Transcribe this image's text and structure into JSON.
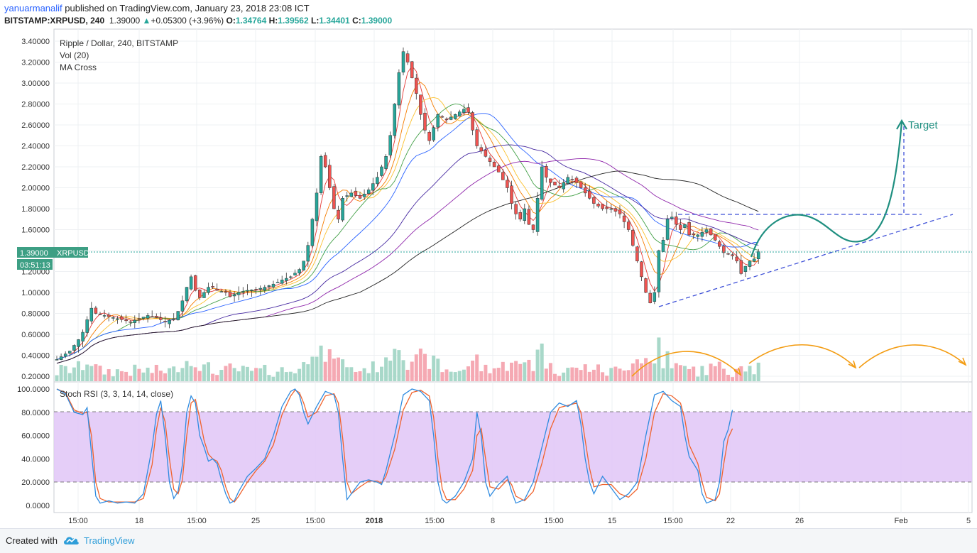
{
  "header": {
    "user": "yanuarmanalif",
    "published": " published on TradingView.com, January 23, 2018 23:08 ICT",
    "symbol": "BITSTAMP:XRPUSD, 240",
    "price": "1.39000",
    "arrow": "▲",
    "change": "+0.05300 (+3.96%)",
    "o_label": "O:",
    "o_value": "1.34764",
    "h_label": "H:",
    "h_value": "1.39562",
    "l_label": "L:",
    "l_value": "1.34401",
    "c_label": "C:",
    "c_value": "1.39000"
  },
  "legend": {
    "title": "Ripple / Dollar, 240, BITSTAMP",
    "vol": "Vol (20)",
    "ma": "MA Cross"
  },
  "price_badge": {
    "value": "1.39000",
    "symbol": "XRPUSD",
    "countdown": "03:51:13"
  },
  "annotation": {
    "target": "Target"
  },
  "rsi": {
    "label": "Stoch RSI (3, 3, 14, 14, close)"
  },
  "footer": {
    "created": "Created with",
    "brand": "TradingView"
  },
  "colors": {
    "bull": "#26a69a",
    "bear": "#ef5350",
    "bull_vol": "#a8d8c9",
    "bear_vol": "#f5a9b3",
    "rsi_band": "#e0c6f7",
    "rsi_k": "#2f8be0",
    "rsi_d": "#f0632d",
    "trend": "#3f51d8",
    "arrow_green": "#1f8f80",
    "arrow_orange": "#f39c12"
  },
  "chart_data": [
    {
      "type": "candlestick",
      "title": "Ripple / Dollar, 240, BITSTAMP",
      "y_ticks": [
        "3.40000",
        "3.20000",
        "3.00000",
        "2.80000",
        "2.60000",
        "2.40000",
        "2.20000",
        "2.00000",
        "1.80000",
        "1.60000",
        "1.40000",
        "1.20000",
        "1.00000",
        "0.80000",
        "0.60000",
        "0.40000",
        "0.20000"
      ],
      "ylim": [
        0.2,
        3.4
      ],
      "x_ticks": [
        "15:00",
        "18",
        "15:00",
        "25",
        "15:00",
        "2018",
        "15:00",
        "8",
        "15:00",
        "15",
        "15:00",
        "22",
        "26",
        "Feb",
        "5"
      ],
      "price_path": [
        [
          0,
          0.36
        ],
        [
          3,
          0.44
        ],
        [
          5,
          0.55
        ],
        [
          6,
          0.62
        ],
        [
          7,
          0.74
        ],
        [
          8,
          0.85
        ],
        [
          9,
          0.8
        ],
        [
          11,
          0.78
        ],
        [
          13,
          0.76
        ],
        [
          15,
          0.74
        ],
        [
          17,
          0.72
        ],
        [
          19,
          0.75
        ],
        [
          21,
          0.78
        ],
        [
          23,
          0.76
        ],
        [
          25,
          0.72
        ],
        [
          27,
          0.75
        ],
        [
          28,
          0.82
        ],
        [
          29,
          0.92
        ],
        [
          30,
          1.05
        ],
        [
          31,
          1.15
        ],
        [
          32,
          1.02
        ],
        [
          33,
          0.95
        ],
        [
          35,
          1.05
        ],
        [
          36,
          1.05
        ],
        [
          37,
          1.02
        ],
        [
          39,
          1.0
        ],
        [
          40,
          0.96
        ],
        [
          42,
          1.0
        ],
        [
          44,
          1.02
        ],
        [
          46,
          1.03
        ],
        [
          48,
          1.05
        ],
        [
          50,
          1.08
        ],
        [
          52,
          1.12
        ],
        [
          54,
          1.15
        ],
        [
          56,
          1.22
        ],
        [
          57,
          1.3
        ],
        [
          58,
          1.45
        ],
        [
          59,
          1.7
        ],
        [
          60,
          1.95
        ],
        [
          61,
          2.3
        ],
        [
          62,
          2.2
        ],
        [
          63,
          2.0
        ],
        [
          64,
          1.8
        ],
        [
          65,
          1.7
        ],
        [
          66,
          1.9
        ],
        [
          68,
          1.95
        ],
        [
          70,
          1.9
        ],
        [
          72,
          1.98
        ],
        [
          74,
          2.1
        ],
        [
          75,
          2.2
        ],
        [
          76,
          2.3
        ],
        [
          77,
          2.5
        ],
        [
          78,
          2.8
        ],
        [
          79,
          3.1
        ],
        [
          80,
          3.3
        ],
        [
          81,
          3.2
        ],
        [
          82,
          3.05
        ],
        [
          83,
          2.9
        ],
        [
          84,
          2.7
        ],
        [
          85,
          2.55
        ],
        [
          86,
          2.45
        ],
        [
          88,
          2.7
        ],
        [
          90,
          2.65
        ],
        [
          92,
          2.7
        ],
        [
          94,
          2.75
        ],
        [
          95,
          2.72
        ],
        [
          96,
          2.55
        ],
        [
          97,
          2.4
        ],
        [
          98,
          2.35
        ],
        [
          100,
          2.25
        ],
        [
          102,
          2.15
        ],
        [
          104,
          2.0
        ],
        [
          105,
          1.85
        ],
        [
          106,
          1.75
        ],
        [
          107,
          1.7
        ],
        [
          108,
          1.8
        ],
        [
          109,
          1.65
        ],
        [
          110,
          1.6
        ],
        [
          112,
          2.2
        ],
        [
          113,
          2.1
        ],
        [
          114,
          2.05
        ],
        [
          116,
          2.0
        ],
        [
          118,
          2.1
        ],
        [
          120,
          2.05
        ],
        [
          122,
          1.95
        ],
        [
          124,
          1.85
        ],
        [
          126,
          1.8
        ],
        [
          128,
          1.8
        ],
        [
          130,
          1.75
        ],
        [
          132,
          1.6
        ],
        [
          133,
          1.45
        ],
        [
          134,
          1.3
        ],
        [
          135,
          1.15
        ],
        [
          136,
          1.0
        ],
        [
          137,
          0.9
        ],
        [
          138,
          1.0
        ],
        [
          139,
          1.4
        ],
        [
          140,
          1.5
        ],
        [
          141,
          1.7
        ],
        [
          142,
          1.72
        ],
        [
          143,
          1.65
        ],
        [
          144,
          1.6
        ],
        [
          145,
          1.65
        ],
        [
          146,
          1.55
        ],
        [
          148,
          1.55
        ],
        [
          150,
          1.6
        ],
        [
          152,
          1.5
        ],
        [
          154,
          1.38
        ],
        [
          156,
          1.35
        ],
        [
          157,
          1.3
        ],
        [
          158,
          1.18
        ],
        [
          159,
          1.25
        ],
        [
          160,
          1.3
        ],
        [
          161,
          1.32
        ],
        [
          162,
          1.39
        ]
      ],
      "volume_ticks_note": "volume histogram overlay",
      "projection": {
        "trend_lower": [
          [
            "Jan 16",
            0.87
          ],
          [
            "Feb 5",
            1.75
          ]
        ],
        "resistance": 1.74,
        "target": 2.65,
        "label": "Target"
      }
    },
    {
      "type": "line",
      "title": "Stoch RSI (3, 3, 14, 14, close)",
      "y_ticks": [
        "100.0000",
        "80.0000",
        "60.0000",
        "40.0000",
        "20.0000",
        "0.0000"
      ],
      "ylim": [
        0,
        100
      ],
      "band": [
        20,
        80
      ],
      "k_path": [
        [
          0,
          100
        ],
        [
          2,
          96
        ],
        [
          4,
          80
        ],
        [
          6,
          78
        ],
        [
          7,
          84
        ],
        [
          8,
          45
        ],
        [
          9,
          8
        ],
        [
          10,
          2
        ],
        [
          12,
          4
        ],
        [
          14,
          2
        ],
        [
          16,
          3
        ],
        [
          18,
          2
        ],
        [
          20,
          10
        ],
        [
          22,
          50
        ],
        [
          23,
          78
        ],
        [
          24,
          90
        ],
        [
          25,
          60
        ],
        [
          26,
          20
        ],
        [
          27,
          6
        ],
        [
          28,
          12
        ],
        [
          29,
          35
        ],
        [
          30,
          80
        ],
        [
          31,
          94
        ],
        [
          32,
          88
        ],
        [
          33,
          60
        ],
        [
          34,
          50
        ],
        [
          35,
          38
        ],
        [
          36,
          40
        ],
        [
          37,
          36
        ],
        [
          38,
          22
        ],
        [
          39,
          10
        ],
        [
          40,
          2
        ],
        [
          41,
          4
        ],
        [
          42,
          12
        ],
        [
          44,
          25
        ],
        [
          46,
          32
        ],
        [
          48,
          40
        ],
        [
          50,
          60
        ],
        [
          52,
          85
        ],
        [
          54,
          98
        ],
        [
          55,
          100
        ],
        [
          56,
          95
        ],
        [
          57,
          80
        ],
        [
          58,
          70
        ],
        [
          60,
          85
        ],
        [
          62,
          98
        ],
        [
          64,
          95
        ],
        [
          65,
          80
        ],
        [
          66,
          40
        ],
        [
          67,
          5
        ],
        [
          68,
          10
        ],
        [
          70,
          20
        ],
        [
          72,
          22
        ],
        [
          74,
          20
        ],
        [
          75,
          18
        ],
        [
          76,
          30
        ],
        [
          78,
          60
        ],
        [
          80,
          95
        ],
        [
          82,
          100
        ],
        [
          84,
          98
        ],
        [
          86,
          90
        ],
        [
          87,
          60
        ],
        [
          88,
          20
        ],
        [
          89,
          5
        ],
        [
          90,
          2
        ],
        [
          92,
          8
        ],
        [
          94,
          20
        ],
        [
          96,
          40
        ],
        [
          97,
          80
        ],
        [
          98,
          60
        ],
        [
          99,
          20
        ],
        [
          100,
          8
        ],
        [
          102,
          18
        ],
        [
          104,
          25
        ],
        [
          105,
          12
        ],
        [
          106,
          2
        ],
        [
          108,
          5
        ],
        [
          110,
          20
        ],
        [
          112,
          50
        ],
        [
          114,
          80
        ],
        [
          116,
          88
        ],
        [
          118,
          85
        ],
        [
          120,
          90
        ],
        [
          121,
          70
        ],
        [
          122,
          40
        ],
        [
          123,
          20
        ],
        [
          124,
          10
        ],
        [
          126,
          25
        ],
        [
          128,
          15
        ],
        [
          130,
          5
        ],
        [
          132,
          10
        ],
        [
          134,
          20
        ],
        [
          136,
          60
        ],
        [
          138,
          95
        ],
        [
          140,
          98
        ],
        [
          142,
          90
        ],
        [
          144,
          85
        ],
        [
          145,
          60
        ],
        [
          146,
          42
        ],
        [
          148,
          30
        ],
        [
          149,
          10
        ],
        [
          150,
          2
        ],
        [
          152,
          5
        ],
        [
          153,
          20
        ],
        [
          154,
          55
        ],
        [
          155,
          65
        ],
        [
          156,
          82
        ]
      ],
      "d_path": [
        [
          0,
          100
        ],
        [
          2,
          97
        ],
        [
          4,
          82
        ],
        [
          6,
          79
        ],
        [
          7,
          80
        ],
        [
          8,
          60
        ],
        [
          9,
          20
        ],
        [
          10,
          6
        ],
        [
          12,
          3
        ],
        [
          14,
          3
        ],
        [
          16,
          3
        ],
        [
          18,
          3
        ],
        [
          20,
          6
        ],
        [
          22,
          35
        ],
        [
          23,
          65
        ],
        [
          24,
          84
        ],
        [
          25,
          72
        ],
        [
          26,
          40
        ],
        [
          27,
          14
        ],
        [
          28,
          10
        ],
        [
          29,
          22
        ],
        [
          30,
          60
        ],
        [
          31,
          88
        ],
        [
          32,
          91
        ],
        [
          33,
          75
        ],
        [
          34,
          56
        ],
        [
          35,
          44
        ],
        [
          36,
          40
        ],
        [
          37,
          38
        ],
        [
          38,
          30
        ],
        [
          39,
          16
        ],
        [
          40,
          6
        ],
        [
          41,
          3
        ],
        [
          42,
          8
        ],
        [
          44,
          20
        ],
        [
          46,
          30
        ],
        [
          48,
          38
        ],
        [
          50,
          52
        ],
        [
          52,
          78
        ],
        [
          54,
          94
        ],
        [
          55,
          99
        ],
        [
          56,
          97
        ],
        [
          57,
          88
        ],
        [
          58,
          76
        ],
        [
          60,
          80
        ],
        [
          62,
          94
        ],
        [
          64,
          96
        ],
        [
          65,
          88
        ],
        [
          66,
          58
        ],
        [
          67,
          20
        ],
        [
          68,
          10
        ],
        [
          70,
          16
        ],
        [
          72,
          21
        ],
        [
          74,
          21
        ],
        [
          75,
          19
        ],
        [
          76,
          25
        ],
        [
          78,
          48
        ],
        [
          80,
          82
        ],
        [
          82,
          97
        ],
        [
          84,
          99
        ],
        [
          86,
          94
        ],
        [
          87,
          76
        ],
        [
          88,
          40
        ],
        [
          89,
          14
        ],
        [
          90,
          5
        ],
        [
          92,
          5
        ],
        [
          94,
          14
        ],
        [
          96,
          30
        ],
        [
          97,
          60
        ],
        [
          98,
          66
        ],
        [
          99,
          40
        ],
        [
          100,
          16
        ],
        [
          102,
          14
        ],
        [
          104,
          22
        ],
        [
          105,
          18
        ],
        [
          106,
          8
        ],
        [
          108,
          4
        ],
        [
          110,
          12
        ],
        [
          112,
          36
        ],
        [
          114,
          66
        ],
        [
          116,
          84
        ],
        [
          118,
          86
        ],
        [
          120,
          88
        ],
        [
          121,
          80
        ],
        [
          122,
          56
        ],
        [
          123,
          32
        ],
        [
          124,
          16
        ],
        [
          126,
          18
        ],
        [
          128,
          18
        ],
        [
          130,
          10
        ],
        [
          132,
          7
        ],
        [
          134,
          14
        ],
        [
          136,
          40
        ],
        [
          138,
          80
        ],
        [
          140,
          96
        ],
        [
          142,
          94
        ],
        [
          144,
          88
        ],
        [
          145,
          74
        ],
        [
          146,
          52
        ],
        [
          148,
          36
        ],
        [
          149,
          20
        ],
        [
          150,
          7
        ],
        [
          152,
          4
        ],
        [
          153,
          10
        ],
        [
          154,
          36
        ],
        [
          155,
          58
        ],
        [
          156,
          66
        ]
      ]
    }
  ]
}
